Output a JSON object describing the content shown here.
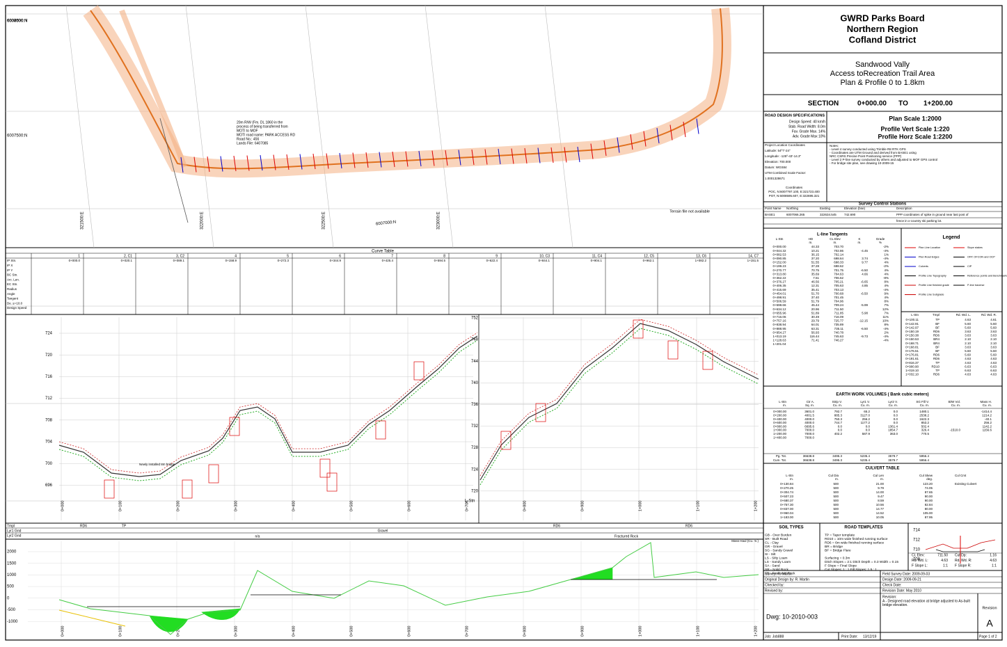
{
  "title_block": {
    "org": [
      "GWRD Parks Board",
      "Northern Region",
      "Cofland District"
    ],
    "project": [
      "Sandwood Vally",
      "Access toRecreation Trail Area",
      "Plan & Profile 0 to 1.8km"
    ],
    "section": {
      "label": "SECTION",
      "from": "0+000.00",
      "to_label": "TO",
      "to": "1+200.00"
    },
    "specs": {
      "title": "ROAD DESIGN SPECIFICATIONS",
      "lines": [
        "Design Speed: 40 km/h",
        "Stab. Road Width: 8.0m",
        "Fav. Grade Max. 14%",
        "Adv. Grade Max 10%"
      ]
    },
    "scales": [
      "Plan Scale 1:2000",
      "Profile Vert Scale 1:220",
      "Profile Horz Scale 1:2200"
    ],
    "location": [
      "Project Location Coordinates",
      "Latitude: 54º7'-24\"",
      "Longitude: -125º-43'-14.3\"",
      "Elevation: 700.000",
      "Datum: WGS84",
      "UTM Combined Scale Factor:",
      "1.0001328671"
    ],
    "coordinates": [
      "Coordinates",
      "POC, N:6007797.100, E:321723.400",
      "POT, N:6008595.607, E:322695.321"
    ],
    "notes": [
      "Notes:",
      "- Level 4 survey conducted using Trimble R8 RTK GPS",
      "- Coordinates are UTM Ground and derived from BASE1 using",
      "  NRC CSRS Precise Point Positioning service (PPP)",
      "- Level 2 P-line survey conducted by others and adjusted to MOF GPS control",
      "- For bridge site plan, see drawing 10-2009-15"
    ]
  },
  "survey_control": {
    "title": "Survey Control Stations",
    "header": [
      "Point Name",
      "Northing",
      "Easting",
      "Elevation (bse)",
      "Description"
    ],
    "row": [
      "BASE1",
      "6007066.265",
      "322634.545",
      "742.690",
      "PPP coordinates of spike in ground near last post of"
    ],
    "row_cont": "fence in x-country ski parking lot."
  },
  "tangents": {
    "title": "L-line Tangents",
    "header": [
      "L-Stn",
      "HD",
      "CL Elev",
      "K",
      "Grade"
    ],
    "units": [
      "m.",
      "m.",
      "m.",
      "%"
    ],
    "rows": [
      [
        "0+000.00",
        "44.33",
        "703.70",
        null,
        "-2%"
      ],
      [
        "0+044.32",
        "10.21",
        "702.86",
        "-4.45",
        "-4%"
      ],
      [
        "0+082.53",
        "36.15",
        "702.14",
        null,
        "1%"
      ],
      [
        "0+090.85",
        "37.20",
        "698.64",
        "3.74",
        "-4%"
      ],
      [
        "0+152.00",
        "51.55",
        "698.33",
        "9.77",
        "4%"
      ],
      [
        "0+199.23",
        "37.28",
        "698.62",
        null,
        "-2%"
      ],
      [
        "0+270.77",
        "70.75",
        "701.75",
        "-6.50",
        "4%"
      ],
      [
        "0+313.80",
        "35.69",
        "704.63",
        "4.66",
        "4%"
      ],
      [
        "0+362.22",
        "7.51",
        "706.62",
        null,
        "-8%"
      ],
      [
        "0+376.27",
        "46.56",
        "705.21",
        "-6.65",
        "8%"
      ],
      [
        "0+406.35",
        "12.31",
        "705.63",
        "4.85",
        "4%"
      ],
      [
        "0+415.69",
        "35.41",
        "703.13",
        null,
        "-4%"
      ],
      [
        "0+454.01",
        "51.70",
        "700.68",
        "-6.50",
        "9%"
      ],
      [
        "0+498.91",
        "37.40",
        "701.45",
        null,
        "4%"
      ],
      [
        "0+506.59",
        "51.79",
        "704.96",
        null,
        "8%"
      ],
      [
        "0+598.66",
        "45.44",
        "709.24",
        "-5.99",
        "7%"
      ],
      [
        "0+634.12",
        "20.96",
        "711.50",
        null,
        "12%"
      ],
      [
        "0+655.96",
        "51.89",
        "711.85",
        "5.98",
        "7%"
      ],
      [
        "0+716.06",
        "30.49",
        "716.09",
        null,
        "11%"
      ],
      [
        "0+757.16",
        "29.79",
        "725.77",
        "-12.15",
        "10%"
      ],
      [
        "0+838.94",
        "64.01",
        "735.89",
        null,
        "8%"
      ],
      [
        "0+888.95",
        "63.31",
        "735.11",
        "-6.50",
        "-4%"
      ],
      [
        "0+954.27",
        "56.93",
        "740.78",
        null,
        "2%"
      ],
      [
        "1+013.19",
        "116.44",
        "745.63",
        "-9.73",
        "-4%"
      ],
      [
        "1+128.63",
        "71.41",
        "746.27",
        null,
        "-4%"
      ],
      [
        "1+201.04",
        null,
        null,
        null,
        null
      ]
    ]
  },
  "legend": {
    "title": "Legend",
    "items": [
      "Plan Line Location",
      "Plan Road Edges",
      "Culverts",
      "Profile Line Topography",
      "Profile Line finished grade",
      "Profile Line Subgrade",
      "Slope stakes",
      "OFP, OFCON and OCP",
      "CIP",
      "Reference points and Benchmarks",
      "P-line traverse"
    ]
  },
  "templates": {
    "header": [
      "L-Stn",
      "Tmpl",
      "Rd. Wd. L.",
      "Rd. Wd. R."
    ],
    "rows": [
      [
        "0+100.11",
        "TP",
        "4.63",
        "4.61"
      ],
      [
        "0+142.91",
        "BF",
        "5.60",
        "5.60"
      ],
      [
        "0+142.97",
        "BF",
        "5.60",
        "5.60"
      ],
      [
        "0+150.19",
        "RD6",
        "3.63",
        "3.63"
      ],
      [
        "0+150.38",
        "RD6",
        "3.63",
        "3.63"
      ],
      [
        "0+150.53",
        "BR4",
        "2.10",
        "2.10"
      ],
      [
        "0+168.71",
        "BR4",
        "2.10",
        "2.10"
      ],
      [
        "0+168.81",
        "BF",
        "3.63",
        "3.63"
      ],
      [
        "0+176.51",
        "BF",
        "5.60",
        "5.60"
      ],
      [
        "0+176.81",
        "RD6",
        "5.60",
        "5.60"
      ],
      [
        "0+191.61",
        "RD6",
        "4.63",
        "4.63"
      ],
      [
        "0+816.37",
        "TP",
        "4.63",
        "4.63"
      ],
      [
        "0+900.90",
        "RD10",
        "6.63",
        "6.63"
      ],
      [
        "1+019.10",
        "TP",
        "6.63",
        "6.63"
      ],
      [
        "1+032.10",
        "RD6",
        "4.63",
        "4.63"
      ]
    ]
  },
  "earthwork": {
    "title": "EARTH WORK VOLUMES ( Bank cubic meters)",
    "header": [
      "L-Stn",
      "Ctr A.",
      "Strip V.",
      "Lyr1 V.",
      "Lyr2 V.",
      "SG Fill V.",
      "B/W Vol.",
      "Mass H."
    ],
    "units": [
      "m.",
      "Sq. m.",
      "Cu. m.",
      "Cu. m.",
      "Cu. m.",
      "Cu. m.",
      "Cu. m.",
      "Cu. m."
    ],
    "rows": [
      [
        "0+000.00",
        "3601.0",
        "792.7",
        "65.2",
        "0.0",
        "1480.1",
        null,
        "-1414.4"
      ],
      [
        "0+200.00",
        "4001.5",
        "885.3",
        "3127.0",
        "0.0",
        "2538.2",
        null,
        "1214.2"
      ],
      [
        "0+400.00",
        "4000.0",
        "750.3",
        "256.2",
        "0.0",
        "1622.3",
        null,
        "-40.1"
      ],
      [
        "0+600.00",
        "4000.0",
        "744.7",
        "1177.2",
        "0.0",
        "853.2",
        null,
        "256.2"
      ],
      [
        "0+800.00",
        "6695.6",
        "0.0",
        "0.0",
        "1361.4",
        "502.4",
        null,
        "1142.2"
      ],
      [
        "1+000.00",
        "7000.0",
        "0.0",
        "0.0",
        "1854.7",
        "326.4",
        "-1510.0",
        "1156.6"
      ],
      [
        "1+200.00",
        "7000.0",
        "402.2",
        "587.9",
        "363.0",
        "770.5",
        null,
        null
      ],
      [
        "1+400.00",
        "7000.0",
        null,
        null,
        null,
        null,
        null,
        null
      ]
    ],
    "totals": [
      [
        "Pg. Tot.",
        "36638.8",
        "3495.3",
        "5235.4",
        "3579.7",
        "5956.4"
      ],
      [
        "Cum. Tot.",
        "36638.8",
        "3495.3",
        "5235.4",
        "3579.7",
        "5956.4"
      ]
    ]
  },
  "culverts": {
    "title": "CULVERT TABLE",
    "header": [
      "L-Stn",
      "Cul Dia",
      "Cul Len",
      "Cul Skew",
      "Cul Cmt"
    ],
    "units": [
      "m.",
      "m.",
      "m.",
      "deg."
    ],
    "rows": [
      [
        "0+130.84",
        "500",
        "21.00",
        "123.20",
        "Existing Culvert"
      ],
      [
        "0+270.25",
        "500",
        "9.79",
        "74.05",
        null
      ],
      [
        "0+304.74",
        "500",
        "14.00",
        "87.65",
        null
      ],
      [
        "0+507.23",
        "500",
        "9.47",
        "90.00",
        null
      ],
      [
        "0+680.37",
        "500",
        "8.59",
        "90.00",
        null
      ],
      [
        "0+757.30",
        "500",
        "10.56",
        "82.84",
        null
      ],
      [
        "0+837.00",
        "500",
        "14.77",
        "80.00",
        null
      ],
      [
        "0+960.04",
        "500",
        "14.52",
        "105.00",
        null
      ],
      [
        "1+183.00",
        "500",
        "10.05",
        "87.95",
        null
      ]
    ]
  },
  "soil_types": {
    "title": "SOIL TYPES",
    "items": [
      "GB - Over Burden",
      "SR - Built Road",
      "CL - Clay",
      "GR - Gravel",
      "SG - Sandy Gravel",
      "SI - Silt",
      "LS - Silty Loam",
      "LS - Sandy Loam",
      "SA - Sand",
      "SR - Solid Rock",
      "FR - Fractured Rock"
    ]
  },
  "road_templates": {
    "title": "ROAD TEMPLATES",
    "items": [
      "TP = Taper template",
      "RD10 = 10m wide finished running surface",
      "RD6 = 6m wide finished running surface",
      "BR = Bridge",
      "BF = Bridge Flare",
      "",
      "Surfacing = 0.3m",
      "Ditch Slopes = 2:1   Ditch Depth = 0.3   Width = 0.15",
      "F Slope = Final Slope",
      "Cut Slopes: 1 : 1          Fill Slopes: 1.5 : 1"
    ]
  },
  "xsection": {
    "axis": [
      "714",
      "712",
      "710",
      "708"
    ],
    "fields": [
      [
        "CL Elev:",
        "711.50",
        "Cut Dp:",
        "1.16"
      ],
      [
        "Rd. Wd. L:",
        "4.63",
        "Rd. Wd. R:",
        "4.63"
      ],
      [
        "F Slope L:",
        "1:1",
        "F Slope R:",
        "1:1"
      ]
    ]
  },
  "signoff": {
    "left": [
      "Survey: R. Martin",
      "Original Design by: R. Martin",
      "Checked by:",
      "Revised by:"
    ],
    "right": [
      "Field Survey Date: 2009-09-03",
      "Design Date: 2009-09-21",
      "Check Date:",
      "Revision Date: May 2010"
    ],
    "dwg": "Dwg: 10-2010-003",
    "rev_head": "Revision",
    "rev_letter": "A",
    "rev_note_head": "Revision:",
    "rev_note": [
      "A - Designed road elevation at bridge adjusted to As-built",
      "bridge elevation."
    ],
    "job": "Job: Job888",
    "print": "Print Date:",
    "print_date": "13/12/19",
    "page": "Page 1 of 2"
  },
  "plan": {
    "northings": [
      "6008000:N",
      "6007500:N",
      "6007000:N"
    ],
    "eastings": [
      "321500:E",
      "322000:E",
      "322500:E",
      "323000:E"
    ],
    "notes": [
      "20m R/W (Fm. DL 1860 in the",
      "process of being transferred from",
      "MOTI to MOF",
      "MOTI road name: PARK ACCESS RD",
      "Road No.: 456",
      "Lands File: 6407085"
    ],
    "terrain": "Terrain file not available"
  },
  "curve_table": {
    "title": "Curve Table",
    "columns": [
      "1",
      "2, C1",
      "3, C2",
      "4",
      "5",
      "6",
      "7",
      "8",
      "9",
      "10, C3",
      "11, C4",
      "12, C5",
      "13, C6",
      "14, C7"
    ],
    "row_labels": [
      "IP Stn.",
      "IP X",
      "IP Y",
      "BC Stn.",
      "Arc. Len.",
      "EC Stn.",
      "Radius",
      "Angle",
      "Tangent",
      "De. ≥=10.0",
      "Design Speed"
    ],
    "ip_stn": [
      "0+000.0",
      "0+020.1",
      "0+089.1",
      "0+158.9",
      "0+272.3",
      "0+344.9",
      "0+425.4",
      "0+594.5",
      "0+622.4",
      "0+844.1",
      "0+904.1",
      "0+962.1",
      "1+082.2",
      "1+151.5"
    ]
  },
  "profile": {
    "left_axis": [
      "724",
      "720",
      "716",
      "712",
      "708",
      "704",
      "700",
      "696"
    ],
    "right_axis": [
      "752",
      "748",
      "744",
      "740",
      "736",
      "732",
      "728",
      "724",
      "720"
    ],
    "stations": [
      "0+000",
      "0+100",
      "0+200",
      "0+300",
      "0+400",
      "0+500",
      "0+600",
      "0+700",
      "0+800",
      "0+900",
      "1+000",
      "1+100",
      "1+200"
    ],
    "x_label": "L-Stn",
    "bridge_note": "Newly installed 8m bridge"
  },
  "bands": {
    "labels": [
      "Tmpl",
      "Lyr1 Gnd",
      "Lyr2 Gnd"
    ],
    "tmpl": [
      "RD6",
      "TP",
      "RD6",
      "RD6"
    ],
    "lyr1": "Gravel",
    "lyr2": [
      "n/a",
      "Fractured Rock"
    ],
    "mass_title": "Mass Haul (Cu. m.)",
    "mass_axis": [
      "2000",
      "1500",
      "1000",
      "500",
      "0",
      "-500",
      "-1000"
    ]
  }
}
